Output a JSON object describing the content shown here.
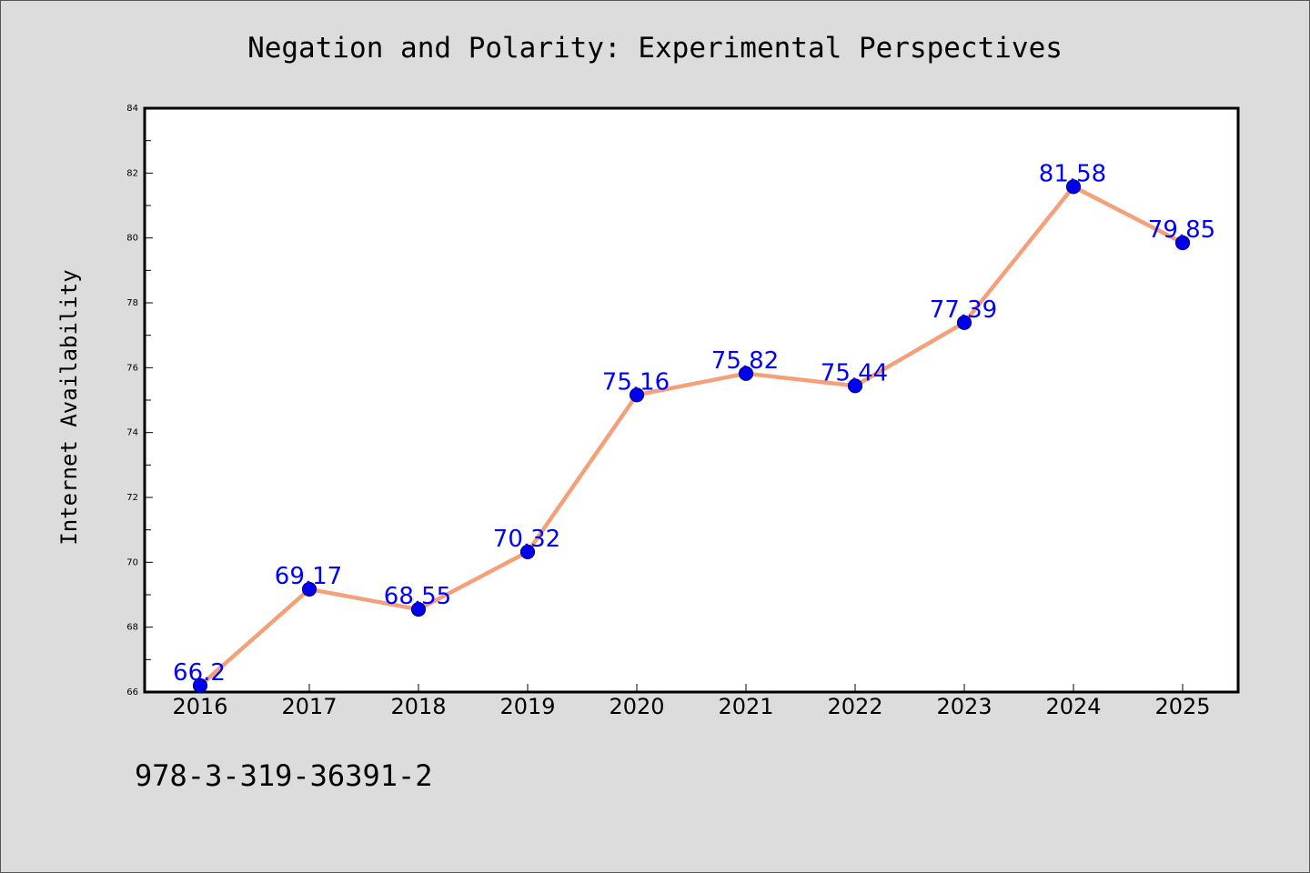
{
  "chart_data": {
    "type": "line",
    "title": "Negation and Polarity: Experimental Perspectives",
    "ylabel": "Internet Availability",
    "xlabel": "",
    "categories": [
      "2016",
      "2017",
      "2018",
      "2019",
      "2020",
      "2021",
      "2022",
      "2023",
      "2024",
      "2025"
    ],
    "values": [
      66.2,
      69.17,
      68.55,
      70.32,
      75.16,
      75.82,
      75.44,
      77.39,
      81.58,
      79.85
    ],
    "data_labels": [
      "66.2",
      "69.17",
      "68.55",
      "70.32",
      "75.16",
      "75.82",
      "75.44",
      "77.39",
      "81.58",
      "79.85"
    ],
    "ylim": [
      66,
      84
    ],
    "yticks": [
      "66",
      "68",
      "70",
      "72",
      "74",
      "76",
      "78",
      "80",
      "82",
      "84"
    ],
    "grid": false,
    "colors": {
      "line": "#f4a07a",
      "marker": "#0000ee",
      "label": "#0000ff"
    }
  },
  "footer": {
    "isbn": "978-3-319-36391-2"
  }
}
